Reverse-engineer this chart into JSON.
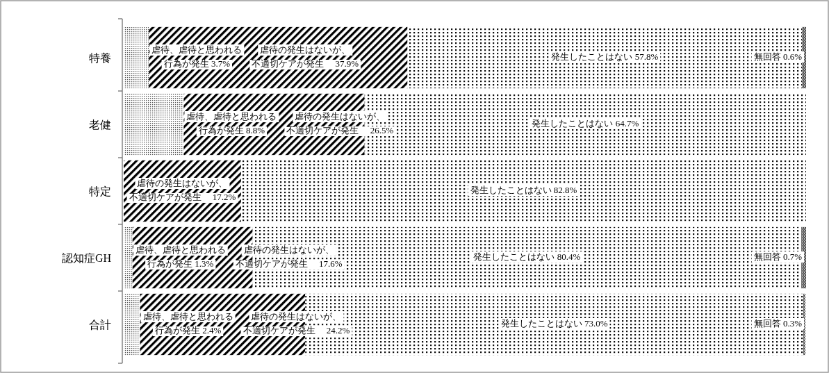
{
  "chart_data": {
    "type": "bar",
    "orientation": "horizontal",
    "stacked": true,
    "categories": [
      "特養",
      "老健",
      "特定",
      "認知症GH",
      "合計"
    ],
    "series": [
      {
        "color": "#555555",
        "values": [
          3.7,
          8.8,
          null,
          1.3,
          2.4
        ],
        "value_labels": [
          "虐待、虐待と思われる行為が発生 3.7%",
          "虐待、虐待と思われる行為が発生 8.8%",
          null,
          "虐待、虐待と思われる行為が発生 1.3%",
          "虐待、虐待と思われる行為が発生 2.4%"
        ]
      },
      {
        "color": "#000000",
        "values": [
          37.9,
          26.5,
          17.2,
          17.6,
          24.2
        ],
        "value_labels": [
          "虐待の発生はないが、不適切ケアが発生　 37.9%",
          "虐待の発生はないが、不適切ケアが発生　 26.5%",
          "虐待の発生はないが、不適切ケアが発生　 17.2%",
          "虐待の発生はないが、不適切ケアが発生　 17.6%",
          "虐待の発生はないが、不適切ケアが発生　 24.2%"
        ]
      },
      {
        "color": "#111111",
        "values": [
          57.8,
          64.7,
          82.8,
          80.4,
          73.0
        ],
        "value_labels": [
          "発生したことはない 57.8%",
          "発生したことはない 64.7%",
          "発生したことはない 82.8%",
          "発生したことはない 80.4%",
          "発生したことはない 73.0%"
        ]
      },
      {
        "color": "#222222",
        "values": [
          0.6,
          null,
          null,
          0.7,
          0.3
        ],
        "value_labels": [
          "無回答 0.6%",
          null,
          null,
          "無回答 0.7%",
          "無回答 0.3%"
        ]
      }
    ]
  }
}
